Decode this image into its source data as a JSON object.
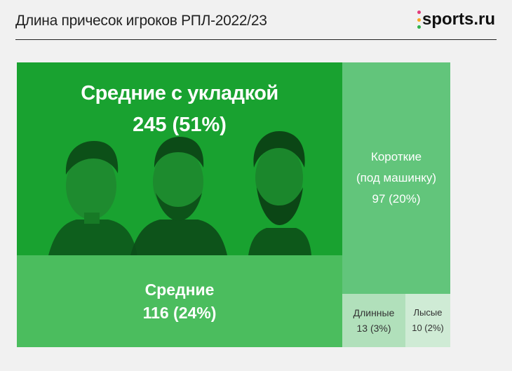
{
  "header": {
    "title": "Длина причесок игроков РПЛ-2022/23",
    "logo_text": "sports.ru",
    "logo_dot_colors": [
      "#e23b7a",
      "#f5a623",
      "#2fb24c"
    ]
  },
  "colors": {
    "main": "#19a230",
    "mid": "#4bbd5e",
    "short": "#62c57b",
    "long": "#b1e0bb",
    "bald": "#cfebd5"
  },
  "chart_data": {
    "type": "treemap",
    "title": "Длина причесок игроков РПЛ-2022/23",
    "items": [
      {
        "label": "Средние с укладкой",
        "display_value": "245 (51%)",
        "value": 245,
        "percent": 51
      },
      {
        "label": "Средние",
        "display_value": "116 (24%)",
        "value": 116,
        "percent": 24
      },
      {
        "label": "Короткие\n(под машинку)",
        "display_value": "97 (20%)",
        "value": 97,
        "percent": 20
      },
      {
        "label": "Длинные",
        "display_value": "13 (3%)",
        "value": 13,
        "percent": 3
      },
      {
        "label": "Лысые",
        "display_value": "10 (2%)",
        "value": 10,
        "percent": 2
      }
    ]
  }
}
